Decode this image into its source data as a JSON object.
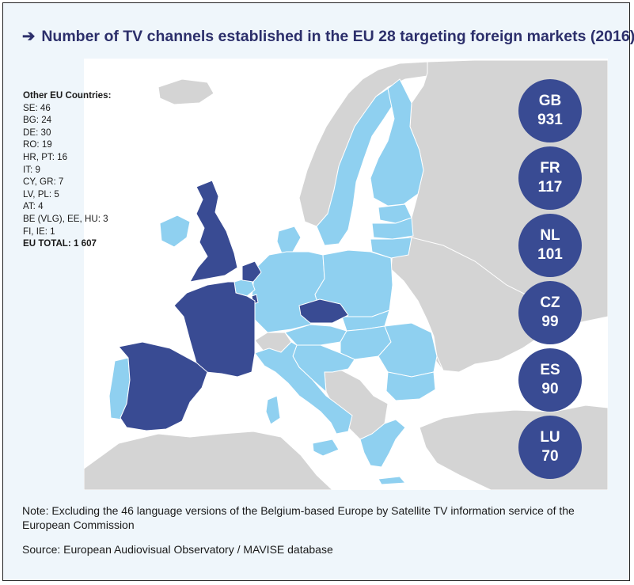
{
  "title": {
    "arrow": "➔",
    "text": "Number of TV channels established in the EU 28 targeting foreign markets (2016)"
  },
  "map": {
    "colors": {
      "background": "#eff6fb",
      "sea": "#ffffff",
      "non_eu": "#d4d4d4",
      "eu_other": "#8fd0f0",
      "eu_top": "#394b93"
    },
    "highlighted_countries": [
      "GB",
      "FR",
      "NL",
      "CZ",
      "ES",
      "LU"
    ]
  },
  "legend": {
    "heading": "Other EU Countries:",
    "items": [
      "SE: 46",
      "BG: 24",
      "DE: 30",
      "RO: 19",
      "HR, PT: 16",
      "IT: 9",
      "CY, GR: 7",
      "LV, PL: 5",
      "AT: 4",
      "BE (VLG), EE, HU: 3",
      "FI, IE: 1"
    ],
    "total": "EU TOTAL: 1 607"
  },
  "badges": [
    {
      "code": "GB",
      "value": "931"
    },
    {
      "code": "FR",
      "value": "117"
    },
    {
      "code": "NL",
      "value": "101"
    },
    {
      "code": "CZ",
      "value": "99"
    },
    {
      "code": "ES",
      "value": "90"
    },
    {
      "code": "LU",
      "value": "70"
    }
  ],
  "note": "Note: Excluding the 46 language versions of the Belgium-based Europe by Satellite TV information service of the European Commission",
  "source": "Source: European Audiovisual Observatory / MAVISE database"
}
